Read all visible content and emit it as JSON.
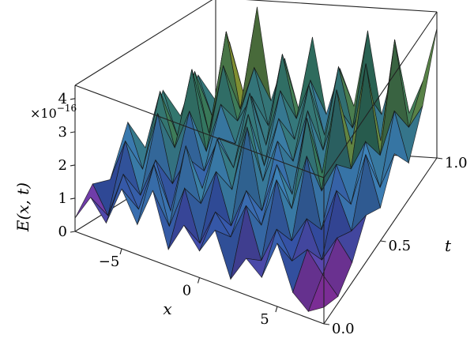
{
  "chart_data": {
    "type": "surface3d",
    "title": "",
    "xlabel": "x",
    "ylabel": "t",
    "zlabel": "E(x, t)",
    "z_scale_label": "×10",
    "z_scale_exponent": "−16",
    "xlim": [
      -8,
      8
    ],
    "ylim": [
      0,
      1
    ],
    "zlim": [
      0,
      4.4
    ],
    "x_ticks": [
      "−5",
      "0",
      "5"
    ],
    "x_tick_values": [
      -5,
      0,
      5
    ],
    "y_ticks": [
      "0.0",
      "0.5",
      "1.0"
    ],
    "y_tick_values": [
      0.0,
      0.5,
      1.0
    ],
    "z_ticks": [
      "0",
      "1",
      "2",
      "3",
      "4"
    ],
    "z_tick_values": [
      0,
      1,
      2,
      3,
      4
    ],
    "x": [
      -8,
      -7,
      -6,
      -5,
      -4,
      -3,
      -2,
      -1,
      0,
      1,
      2,
      3,
      4,
      5,
      6,
      7,
      8
    ],
    "t": [
      0.0,
      0.125,
      0.25,
      0.375,
      0.5,
      0.625,
      0.75,
      0.875,
      1.0
    ],
    "z": [
      [
        0.4,
        1.2,
        0.6,
        1.8,
        0.9,
        2.1,
        0.5,
        1.4,
        0.8,
        1.6,
        0.3,
        1.1,
        0.7,
        1.9,
        0.6,
        0.2,
        0.5
      ],
      [
        1.1,
        0.3,
        1.7,
        0.8,
        2.3,
        0.6,
        1.9,
        0.4,
        1.5,
        0.9,
        2.0,
        0.5,
        1.6,
        0.8,
        1.3,
        0.7,
        0.2
      ],
      [
        0.9,
        2.2,
        0.7,
        1.9,
        0.5,
        2.6,
        1.0,
        2.1,
        0.6,
        1.8,
        0.9,
        2.4,
        0.7,
        1.5,
        0.4,
        1.2,
        0.6
      ],
      [
        2.3,
        1.0,
        2.8,
        0.8,
        1.7,
        0.9,
        2.5,
        1.1,
        3.1,
        0.7,
        2.2,
        1.0,
        2.7,
        0.6,
        1.9,
        0.8,
        1.4
      ],
      [
        1.2,
        3.0,
        1.4,
        2.6,
        0.9,
        2.0,
        1.2,
        2.9,
        1.0,
        2.3,
        0.8,
        3.2,
        1.1,
        2.0,
        0.9,
        2.5,
        1.0
      ],
      [
        2.6,
        1.3,
        3.4,
        1.0,
        2.5,
        1.4,
        3.0,
        0.9,
        2.4,
        1.2,
        2.8,
        1.0,
        3.6,
        1.3,
        2.2,
        0.9,
        2.0
      ],
      [
        1.5,
        2.9,
        1.1,
        3.2,
        1.6,
        2.4,
        1.0,
        2.7,
        1.3,
        3.0,
        1.1,
        2.5,
        1.4,
        3.9,
        1.2,
        2.6,
        1.1
      ],
      [
        2.4,
        1.2,
        3.8,
        1.5,
        2.8,
        1.1,
        3.3,
        1.4,
        2.6,
        1.0,
        3.1,
        1.3,
        2.4,
        1.0,
        4.1,
        1.5,
        2.2
      ],
      [
        1.3,
        3.1,
        1.6,
        4.2,
        1.4,
        2.7,
        1.2,
        3.4,
        1.1,
        2.5,
        1.4,
        3.7,
        1.2,
        2.8,
        1.3,
        2.3,
        3.9
      ]
    ]
  }
}
